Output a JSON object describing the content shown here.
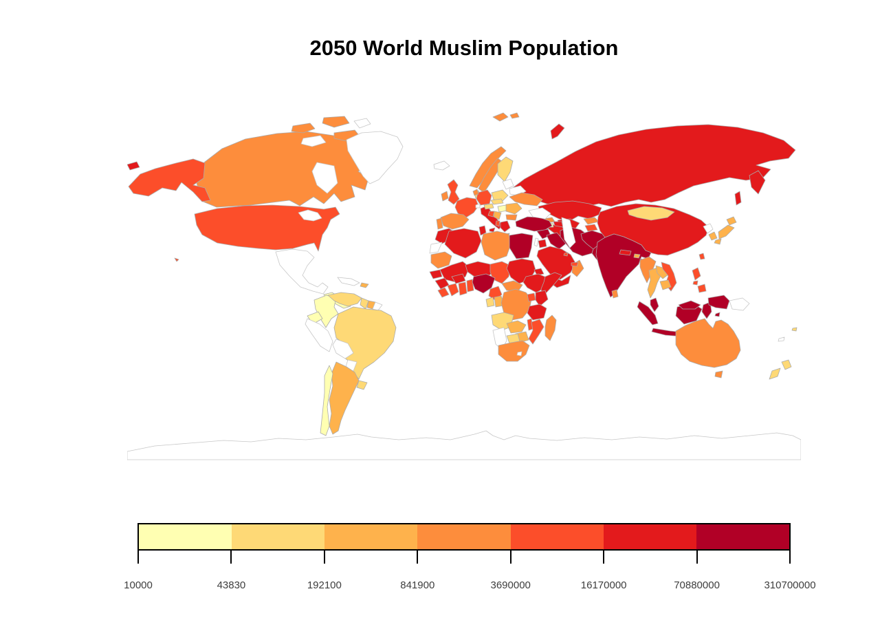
{
  "title": "2050 World Muslim Population",
  "chart_data": {
    "type": "choropleth_map",
    "title": "2050 World Muslim Population",
    "legend": {
      "position": "bottom",
      "scale": "logarithmic bins",
      "breaks": [
        10000,
        43830,
        192100,
        841900,
        3690000,
        16170000,
        70880000,
        310700000
      ],
      "tick_labels": [
        "10000",
        "43830",
        "192100",
        "841900",
        "3690000",
        "16170000",
        "70880000",
        "310700000"
      ],
      "colors": [
        "#FFFFB2",
        "#FED976",
        "#FEB24C",
        "#FD8D3C",
        "#FC4E2A",
        "#E31A1C",
        "#B10026"
      ],
      "bin_note": "bin 1 = 10000-43830 ... bin 7 = 70880000-310700000; 0 = no data (white)"
    },
    "countries": {
      "canada": 4,
      "canada_islands": 4,
      "arctic_islands_white": 0,
      "alaska": 5,
      "usa": 5,
      "hawaii": 5,
      "greenland": 0,
      "mexico": 0,
      "cuba": 0,
      "hispaniola": 3,
      "central_america": 1,
      "colombia": 1,
      "venezuela": 2,
      "guyana": 2,
      "suriname": 3,
      "french_guiana": 0,
      "ecuador": 1,
      "peru": 0,
      "brazil": 2,
      "bolivia": 0,
      "paraguay": 0,
      "uruguay": 2,
      "argentina": 3,
      "chile": 1,
      "iceland": 0,
      "uk": 5,
      "ireland": 4,
      "norway": 4,
      "sweden": 4,
      "finland": 2,
      "denmark": 2,
      "baltics": 0,
      "belarus": 0,
      "poland": 2,
      "germany": 5,
      "netherlands_belgium": 4,
      "france": 5,
      "spain": 4,
      "portugal": 4,
      "italy": 6,
      "switzerland": 0,
      "austria": 2,
      "czech_slovakia": 2,
      "hungary": 1,
      "romania": 3,
      "ukraine": 4,
      "serbia": 3,
      "bosnia": 5,
      "albania": 5,
      "greece": 6,
      "bulgaria": 4,
      "russia": 6,
      "russia_west_overflow": 6,
      "novaya_zemlya": 6,
      "svalbard": 4,
      "kazakhstan": 6,
      "uzbekistan": 6,
      "turkmenistan": 6,
      "kyrgyzstan": 4,
      "tajikistan": 5,
      "georgia": 4,
      "azerbaijan": 6,
      "armenia": 1,
      "turkey": 7,
      "syria": 7,
      "lebanon_israel": 0,
      "jordan": 6,
      "iraq": 7,
      "iran": 7,
      "afghanistan": 7,
      "pakistan": 7,
      "saudi_arabia": 6,
      "yemen": 6,
      "oman": 4,
      "uae": 5,
      "kuwait": 5,
      "india": 7,
      "nepal": 6,
      "bhutan": 3,
      "bangladesh": 7,
      "sri_lanka": 4,
      "china": 6,
      "mongolia": 2,
      "north_korea": 0,
      "south_korea": 3,
      "japan": 3,
      "taiwan": 5,
      "myanmar": 4,
      "thailand": 3,
      "laos": 3,
      "vietnam": 5,
      "cambodia": 3,
      "malaysia": 7,
      "indonesia": 7,
      "philippines": 5,
      "papua_new_guinea": 0,
      "australia": 4,
      "new_zealand": 2,
      "fiji": 2,
      "new_caledonia": 0,
      "morocco": 6,
      "western_sahara": 0,
      "algeria": 6,
      "tunisia": 6,
      "libya": 4,
      "egypt": 7,
      "mauritania": 4,
      "mali": 6,
      "niger": 6,
      "chad": 5,
      "sudan": 6,
      "eritrea": 6,
      "ethiopia": 6,
      "somalia": 6,
      "senegal": 6,
      "guinea": 6,
      "sierra_leone_liberia": 5,
      "ivory_coast": 5,
      "ghana": 5,
      "togo_benin": 5,
      "burkina_faso": 6,
      "nigeria": 7,
      "cameroon": 5,
      "car": 4,
      "gabon": 2,
      "congo": 3,
      "drc": 4,
      "uganda": 5,
      "kenya": 6,
      "tanzania": 6,
      "angola": 2,
      "zambia": 3,
      "malawi": 5,
      "mozambique": 5,
      "zimbabwe": 3,
      "botswana": 2,
      "namibia": 0,
      "south_africa": 4,
      "lesotho": 0,
      "madagascar": 4,
      "antarctica": 0
    }
  },
  "map": {
    "ocean_color": "#FFFFFF",
    "no_data_fill": "#FFFFFF",
    "border_color": "#ABABAB",
    "no_data_border": "#C6C6C6"
  }
}
